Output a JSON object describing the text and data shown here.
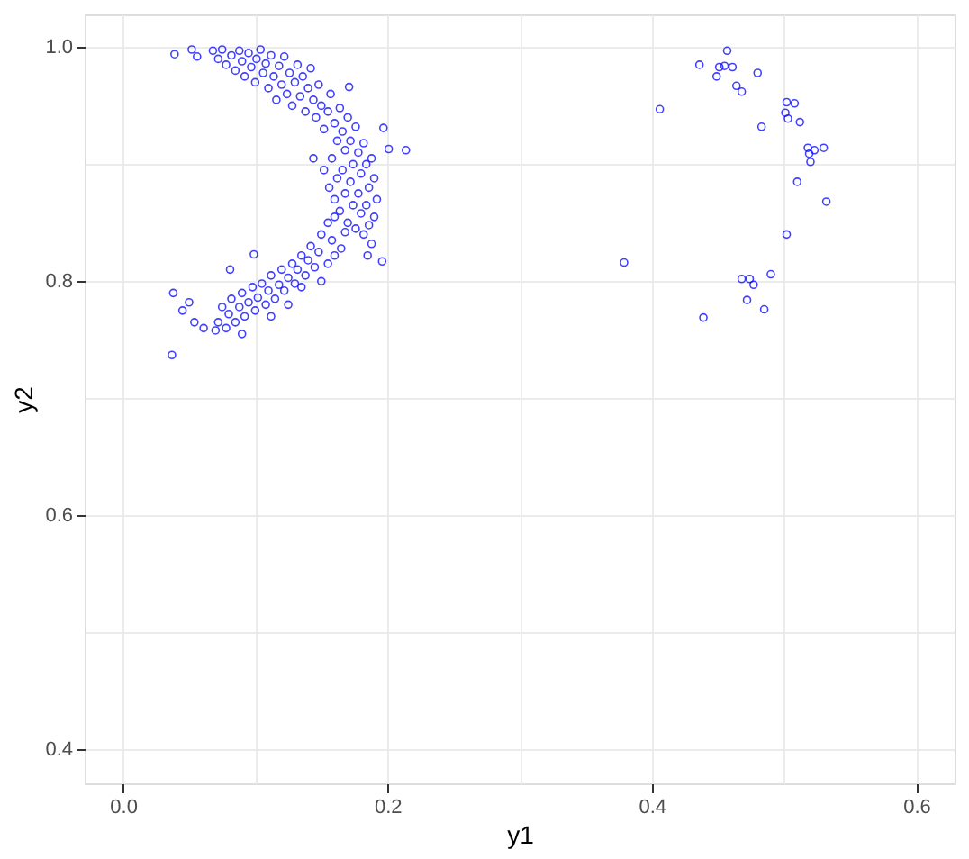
{
  "chart_data": {
    "type": "scatter",
    "xlabel": "y1",
    "ylabel": "y2",
    "marker": "circle",
    "grid": true,
    "xlim": [
      -0.029,
      0.629
    ],
    "ylim": [
      0.371,
      1.028
    ],
    "xticks": [
      {
        "value": 0.0,
        "label": "0.0"
      },
      {
        "value": 0.1,
        "label": null
      },
      {
        "value": 0.2,
        "label": "0.2"
      },
      {
        "value": 0.3,
        "label": null
      },
      {
        "value": 0.4,
        "label": "0.4"
      },
      {
        "value": 0.5,
        "label": null
      },
      {
        "value": 0.6,
        "label": "0.6"
      }
    ],
    "yticks": [
      {
        "value": 0.4,
        "label": "0.4"
      },
      {
        "value": 0.5,
        "label": null
      },
      {
        "value": 0.6,
        "label": "0.6"
      },
      {
        "value": 0.7,
        "label": null
      },
      {
        "value": 0.8,
        "label": "0.8"
      },
      {
        "value": 0.9,
        "label": null
      },
      {
        "value": 1.0,
        "label": "1.0"
      }
    ],
    "series": [
      {
        "color": "#0000ff",
        "x": [
          0.039,
          0.052,
          0.056,
          0.068,
          0.072,
          0.075,
          0.078,
          0.082,
          0.085,
          0.088,
          0.09,
          0.092,
          0.095,
          0.097,
          0.1,
          0.101,
          0.104,
          0.106,
          0.108,
          0.11,
          0.112,
          0.114,
          0.116,
          0.118,
          0.12,
          0.122,
          0.124,
          0.126,
          0.128,
          0.13,
          0.132,
          0.134,
          0.136,
          0.138,
          0.14,
          0.142,
          0.144,
          0.146,
          0.148,
          0.15,
          0.152,
          0.155,
          0.157,
          0.16,
          0.162,
          0.164,
          0.166,
          0.168,
          0.17,
          0.171,
          0.172,
          0.174,
          0.176,
          0.178,
          0.18,
          0.182,
          0.184,
          0.186,
          0.188,
          0.19,
          0.192,
          0.197,
          0.201,
          0.214,
          0.144,
          0.152,
          0.156,
          0.158,
          0.16,
          0.162,
          0.164,
          0.166,
          0.168,
          0.17,
          0.172,
          0.174,
          0.176,
          0.178,
          0.18,
          0.182,
          0.184,
          0.186,
          0.188,
          0.19,
          0.155,
          0.158,
          0.16,
          0.15,
          0.165,
          0.168,
          0.196,
          0.185,
          0.148,
          0.145,
          0.142,
          0.14,
          0.138,
          0.135,
          0.132,
          0.13,
          0.128,
          0.125,
          0.122,
          0.12,
          0.118,
          0.115,
          0.112,
          0.11,
          0.108,
          0.105,
          0.102,
          0.1,
          0.099,
          0.098,
          0.095,
          0.092,
          0.09,
          0.09,
          0.088,
          0.085,
          0.082,
          0.081,
          0.08,
          0.078,
          0.075,
          0.072,
          0.07,
          0.061,
          0.054,
          0.037,
          0.038,
          0.045,
          0.05,
          0.155,
          0.16,
          0.15,
          0.135,
          0.112,
          0.125,
          0.457,
          0.436,
          0.451,
          0.455,
          0.461,
          0.449,
          0.48,
          0.464,
          0.468,
          0.406,
          0.502,
          0.508,
          0.501,
          0.503,
          0.512,
          0.483,
          0.518,
          0.523,
          0.53,
          0.519,
          0.52,
          0.51,
          0.532,
          0.502,
          0.379,
          0.49,
          0.468,
          0.474,
          0.477,
          0.472,
          0.485,
          0.439
        ],
        "values": [
          0.994,
          0.998,
          0.992,
          0.997,
          0.99,
          0.998,
          0.985,
          0.993,
          0.98,
          0.997,
          0.988,
          0.975,
          0.995,
          0.983,
          0.97,
          0.99,
          0.998,
          0.978,
          0.986,
          0.965,
          0.993,
          0.975,
          0.955,
          0.984,
          0.968,
          0.992,
          0.96,
          0.978,
          0.95,
          0.97,
          0.985,
          0.958,
          0.975,
          0.945,
          0.965,
          0.982,
          0.955,
          0.94,
          0.968,
          0.95,
          0.93,
          0.945,
          0.96,
          0.935,
          0.92,
          0.948,
          0.928,
          0.912,
          0.94,
          0.966,
          0.92,
          0.9,
          0.932,
          0.91,
          0.892,
          0.918,
          0.9,
          0.88,
          0.905,
          0.888,
          0.87,
          0.931,
          0.913,
          0.912,
          0.905,
          0.895,
          0.88,
          0.905,
          0.87,
          0.888,
          0.86,
          0.895,
          0.875,
          0.85,
          0.885,
          0.865,
          0.845,
          0.875,
          0.858,
          0.84,
          0.865,
          0.848,
          0.832,
          0.855,
          0.85,
          0.835,
          0.855,
          0.84,
          0.828,
          0.842,
          0.817,
          0.822,
          0.825,
          0.812,
          0.83,
          0.818,
          0.805,
          0.822,
          0.81,
          0.798,
          0.815,
          0.803,
          0.792,
          0.81,
          0.797,
          0.785,
          0.805,
          0.792,
          0.78,
          0.798,
          0.786,
          0.775,
          0.823,
          0.795,
          0.782,
          0.77,
          0.755,
          0.79,
          0.778,
          0.765,
          0.785,
          0.81,
          0.772,
          0.76,
          0.778,
          0.765,
          0.758,
          0.76,
          0.765,
          0.737,
          0.79,
          0.775,
          0.782,
          0.815,
          0.822,
          0.8,
          0.795,
          0.77,
          0.78,
          0.997,
          0.985,
          0.983,
          0.984,
          0.983,
          0.975,
          0.978,
          0.967,
          0.962,
          0.947,
          0.953,
          0.952,
          0.944,
          0.939,
          0.936,
          0.932,
          0.914,
          0.912,
          0.914,
          0.909,
          0.902,
          0.885,
          0.868,
          0.84,
          0.816,
          0.806,
          0.802,
          0.802,
          0.797,
          0.784,
          0.776,
          0.769
        ]
      }
    ]
  }
}
